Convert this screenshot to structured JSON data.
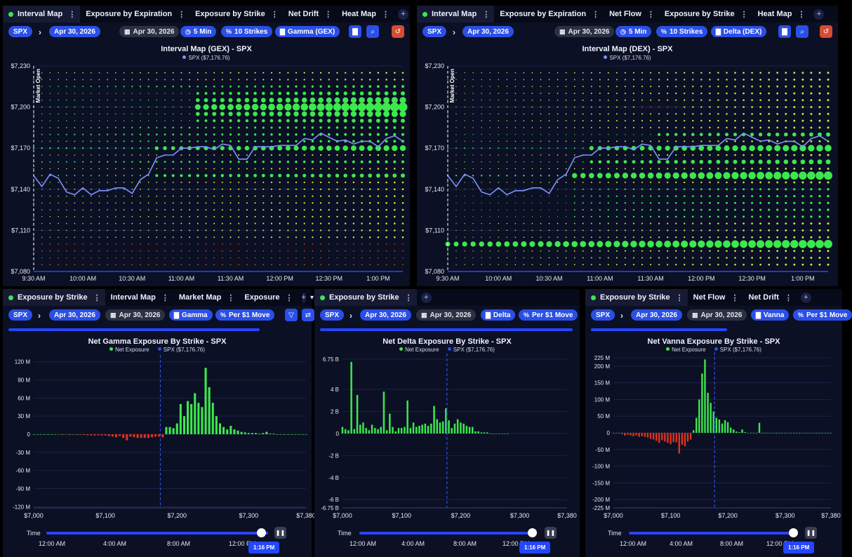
{
  "panels": {
    "gex": {
      "tabs": [
        {
          "label": "Interval Map",
          "dot": true
        },
        {
          "label": "Exposure by Expiration"
        },
        {
          "label": "Exposure by Strike"
        },
        {
          "label": "Net Drift"
        },
        {
          "label": "Heat Map"
        }
      ],
      "toolbar": {
        "symbol": "SPX",
        "date": "Apr 30, 2026",
        "date2": "Apr 30, 2026",
        "interval": "5 Min",
        "strikes": "10 Strikes",
        "greek": "Gamma (GEX)"
      },
      "title": "Interval Map (GEX) - SPX",
      "legend": "SPX ($7,176.76)",
      "annotation": "Market Open"
    },
    "dex": {
      "tabs": [
        {
          "label": "Interval Map",
          "dot": true
        },
        {
          "label": "Exposure by Expiration"
        },
        {
          "label": "Net Flow"
        },
        {
          "label": "Exposure by Strike"
        },
        {
          "label": "Heat Map"
        }
      ],
      "toolbar": {
        "symbol": "SPX",
        "date": "Apr 30, 2026",
        "date2": "Apr 30, 2026",
        "interval": "5 Min",
        "strikes": "10 Strikes",
        "greek": "Delta (DEX)"
      },
      "title": "Interval Map (DEX) - SPX",
      "legend": "SPX ($7,176.76)",
      "annotation": "Market Open"
    },
    "gamma": {
      "tabs": [
        {
          "label": "Exposure by Strike",
          "dot": true
        },
        {
          "label": "Interval Map"
        },
        {
          "label": "Market Map"
        },
        {
          "label": "Exposure"
        }
      ],
      "tab_extra": "1",
      "toolbar": {
        "symbol": "SPX",
        "date": "Apr 30, 2026",
        "date2": "Apr 30, 2026",
        "greek": "Gamma",
        "move": "Per $1 Move"
      },
      "title": "Net Gamma Exposure By Strike - SPX",
      "legend_net": "Net Exposure",
      "legend_spx": "SPX ($7,176.76)",
      "time": {
        "label": "Time",
        "ticks": [
          "12:00 AM",
          "4:00 AM",
          "8:00 AM",
          "12:00 PM"
        ],
        "current": "1:16 PM",
        "value": 0.97
      }
    },
    "delta": {
      "tabs": [
        {
          "label": "Exposure by Strike",
          "dot": true
        }
      ],
      "toolbar": {
        "symbol": "SPX",
        "date": "Apr 30, 2026",
        "date2": "Apr 30, 2026",
        "greek": "Delta",
        "move": "Per $1 Move"
      },
      "title": "Net Delta Exposure By Strike - SPX",
      "legend_net": "Net Exposure",
      "legend_spx": "SPX ($7,176.76)",
      "time": {
        "label": "Time",
        "ticks": [
          "12:00 AM",
          "4:00 AM",
          "8:00 AM",
          "12:00 PM"
        ],
        "current": "1:16 PM",
        "value": 0.97
      }
    },
    "vanna": {
      "tabs": [
        {
          "label": "Exposure by Strike",
          "dot": true
        },
        {
          "label": "Net Flow"
        },
        {
          "label": "Net Drift"
        }
      ],
      "toolbar": {
        "symbol": "SPX",
        "date": "Apr 30, 2026",
        "date2": "Apr 30, 2026",
        "greek": "Vanna",
        "move": "Per $1 Move"
      },
      "title": "Net Vanna Exposure By Strike - SPX",
      "legend_net": "Net Exposure",
      "legend_spx": "SPX ($7,176.76)",
      "time": {
        "label": "Time",
        "ticks": [
          "12:00 AM",
          "4:00 AM",
          "8:00 AM",
          "12:00 PM"
        ],
        "current": "1:16 PM",
        "value": 0.97
      }
    }
  },
  "colors": {
    "positive": "#3ce84c",
    "negative": "#e0321c",
    "price": "#7f93ff",
    "dim_positive": "#c9ef3c",
    "dim_negative": "#e85a1c",
    "accent": "#2b4fe6"
  },
  "chart_data": [
    {
      "id": "gex",
      "type": "scatter",
      "title": "Interval Map (GEX) - SPX",
      "x_ticks": [
        "9:30 AM",
        "10:00 AM",
        "10:30 AM",
        "11:00 AM",
        "11:30 AM",
        "12:00 PM",
        "12:30 PM",
        "1:00 PM"
      ],
      "y_ticks": [
        "$7,230",
        "$7,200",
        "$7,170",
        "$7,140",
        "$7,110",
        "$7,080"
      ],
      "ylim": [
        7080,
        7230
      ],
      "x_range_min": [
        0,
        225
      ],
      "strike_step": 5,
      "annotation": {
        "label": "Market Open",
        "x_min": 0
      },
      "series": [
        {
          "name": "SPX ($7,176.76)",
          "x_min_step": 5,
          "values": [
            7150,
            7142,
            7151,
            7148,
            7138,
            7136,
            7141,
            7136,
            7139,
            7139,
            7141,
            7141,
            7137,
            7147,
            7151,
            7163,
            7165,
            7165,
            7170,
            7170,
            7171,
            7171,
            7169,
            7173,
            7172,
            7162,
            7162,
            7171,
            7171,
            7171,
            7172,
            7172,
            7172,
            7177,
            7176,
            7181,
            7178,
            7175,
            7176,
            7173,
            7175,
            7175,
            7171,
            7177,
            7179,
            7175
          ]
        }
      ],
      "bubbles_note": "Positive exposure concentrated at $7,200 and $7,170 strikes, growing after 11:00 AM; small negative exposure below $7,100."
    },
    {
      "id": "dex",
      "type": "scatter",
      "title": "Interval Map (DEX) - SPX",
      "x_ticks": [
        "9:30 AM",
        "10:00 AM",
        "10:30 AM",
        "11:00 AM",
        "11:30 AM",
        "12:00 PM",
        "12:30 PM",
        "1:00 PM"
      ],
      "y_ticks": [
        "$7,230",
        "$7,200",
        "$7,170",
        "$7,140",
        "$7,110",
        "$7,080"
      ],
      "ylim": [
        7080,
        7230
      ],
      "x_range_min": [
        0,
        225
      ],
      "strike_step": 5,
      "annotation": {
        "label": "Market Open",
        "x_min": 0
      },
      "series": [
        {
          "name": "SPX ($7,176.76)",
          "x_min_step": 5,
          "values": [
            7150,
            7142,
            7151,
            7148,
            7138,
            7136,
            7141,
            7136,
            7139,
            7139,
            7141,
            7141,
            7137,
            7147,
            7151,
            7163,
            7165,
            7165,
            7170,
            7170,
            7171,
            7171,
            7169,
            7173,
            7172,
            7162,
            7162,
            7171,
            7171,
            7171,
            7172,
            7172,
            7172,
            7177,
            7176,
            7181,
            7178,
            7175,
            7176,
            7173,
            7175,
            7175,
            7171,
            7177,
            7179,
            7175
          ]
        }
      ],
      "bubbles_note": "Large positive exposure at $7,100 across the session; rising exposure at $7,150 and $7,170 after 10:30 AM."
    },
    {
      "id": "gamma",
      "type": "bar",
      "title": "Net Gamma Exposure By Strike - SPX",
      "legend": [
        "Net Exposure",
        "SPX ($7,176.76)"
      ],
      "x_ticks": [
        "$7,000",
        "$7,100",
        "$7,200",
        "$7,300",
        "$7,380"
      ],
      "y_ticks": [
        "120 M",
        "90 M",
        "60 M",
        "30 M",
        "0",
        "-30 M",
        "-60 M",
        "-90 M",
        "-120 M"
      ],
      "ylim": [
        -122,
        122
      ],
      "unit": "M",
      "x_start": 7000,
      "x_step": 5,
      "spot": 7176.76,
      "values": [
        0,
        0,
        0,
        0,
        0,
        0,
        0,
        -0.5,
        0,
        -0.5,
        0,
        -1,
        0,
        -1,
        0,
        -1.5,
        -2,
        -2,
        -1.5,
        -2,
        -2,
        -3,
        -4,
        -5,
        -3,
        -6,
        -10,
        -4,
        -5,
        -6,
        -6,
        -6,
        -6,
        -5,
        -4,
        -4,
        -5,
        12,
        12,
        10,
        18,
        50,
        30,
        55,
        50,
        68,
        52,
        45,
        110,
        78,
        52,
        30,
        18,
        12,
        8,
        14,
        8,
        6,
        4,
        3,
        2,
        2,
        2,
        1,
        2,
        4,
        1,
        1,
        0,
        0,
        0,
        0,
        0,
        0,
        0,
        0,
        0
      ]
    },
    {
      "id": "delta",
      "type": "bar",
      "title": "Net Delta Exposure By Strike - SPX",
      "legend": [
        "Net Exposure",
        "SPX ($7,176.76)"
      ],
      "x_ticks": [
        "$7,000",
        "$7,100",
        "$7,200",
        "$7,300",
        "$7,380"
      ],
      "y_ticks": [
        "6.75 B",
        "4 B",
        "2 B",
        "0",
        "-2 B",
        "-4 B",
        "-6 B",
        "-6.75 B"
      ],
      "ylim": [
        -6.75,
        6.75
      ],
      "unit": "B",
      "x_start": 7000,
      "x_step": 5,
      "spot": 7176.76,
      "values": [
        0.6,
        0.4,
        0.3,
        6.5,
        0.4,
        3.5,
        0.8,
        1.0,
        0.5,
        0.3,
        0.8,
        0.5,
        0.4,
        0.6,
        3.8,
        0.3,
        1.8,
        0.6,
        0.2,
        0.5,
        0.5,
        0.6,
        3.0,
        0.5,
        1.0,
        0.6,
        0.7,
        0.8,
        0.9,
        0.7,
        0.9,
        2.5,
        1.3,
        1.0,
        1.1,
        2.3,
        1.2,
        0.5,
        0.9,
        1.3,
        1.0,
        0.9,
        0.7,
        0.6,
        0.6,
        0.2,
        0.2,
        0.1,
        0.1,
        0.1,
        0,
        0,
        0,
        0,
        0,
        0,
        0
      ]
    },
    {
      "id": "vanna",
      "type": "bar",
      "title": "Net Vanna Exposure By Strike - SPX",
      "legend": [
        "Net Exposure",
        "SPX ($7,176.76)"
      ],
      "x_ticks": [
        "$7,000",
        "$7,100",
        "$7,200",
        "$7,300",
        "$7,380"
      ],
      "y_ticks": [
        "225 M",
        "200 M",
        "150 M",
        "100 M",
        "50 M",
        "0",
        "-50 M",
        "-100 M",
        "-150 M",
        "-200 M",
        "-225 M"
      ],
      "ylim": [
        -225,
        225
      ],
      "unit": "M",
      "x_start": 7000,
      "x_step": 5,
      "spot": 7176.76,
      "values": [
        0,
        0,
        -2,
        -4,
        -8,
        -6,
        -8,
        -10,
        -8,
        -12,
        -10,
        -12,
        -14,
        -18,
        -20,
        -24,
        -30,
        -22,
        -26,
        -30,
        -34,
        -28,
        -28,
        -62,
        -36,
        -40,
        -26,
        -20,
        8,
        45,
        100,
        178,
        220,
        120,
        90,
        64,
        45,
        40,
        28,
        38,
        32,
        16,
        10,
        4,
        2,
        10,
        2,
        0,
        0,
        0,
        0,
        30,
        0,
        0,
        0,
        0,
        0,
        0,
        0,
        0,
        0,
        0,
        0,
        0,
        0,
        0,
        0,
        0,
        0,
        0,
        0,
        0,
        0,
        0,
        0,
        0,
        0
      ]
    }
  ]
}
